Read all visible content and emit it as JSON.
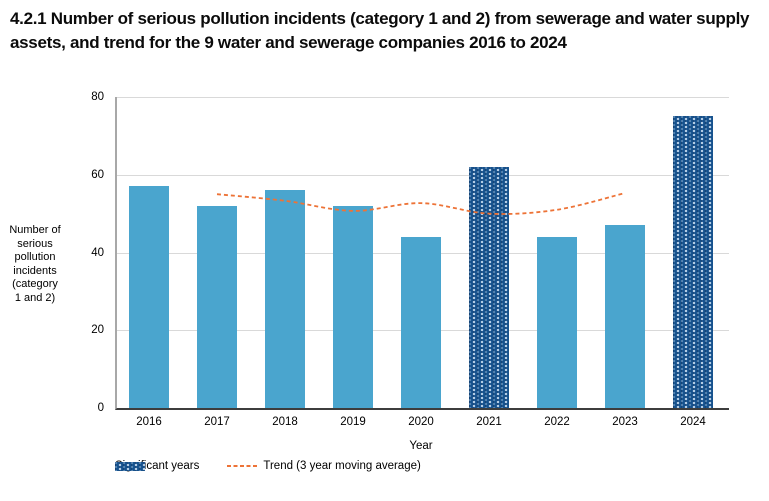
{
  "chart_data": {
    "type": "bar",
    "title": "4.2.1 Number of serious pollution incidents (category 1 and 2) from sewerage and water supply assets, and trend for the 9 water and sewerage companies 2016 to 2024",
    "categories": [
      "2016",
      "2017",
      "2018",
      "2019",
      "2020",
      "2021",
      "2022",
      "2023",
      "2024"
    ],
    "series": [
      {
        "name": "Number of serious pollution incidents (category 1 and 2)",
        "type": "bar",
        "values": [
          57,
          52,
          56,
          52,
          44,
          62,
          44,
          47,
          75
        ]
      },
      {
        "name": "Trend (3 year moving average)",
        "type": "line",
        "x": [
          "2017",
          "2018",
          "2019",
          "2020",
          "2021",
          "2022",
          "2023"
        ],
        "values": [
          55,
          53.3,
          50.7,
          52.7,
          50,
          51,
          55.3
        ]
      }
    ],
    "significant_years": [
      "2021",
      "2024"
    ],
    "xlabel": "Year",
    "ylabel": "Number of serious pollution incidents (category 1 and 2)",
    "ylim": [
      0,
      80
    ],
    "yticks": [
      0,
      20,
      40,
      60,
      80
    ],
    "grid": true,
    "legend_position": "bottom",
    "legend": [
      {
        "label": "Significant years",
        "swatch": "patterned-dark-blue-bar"
      },
      {
        "label": "Trend (3 year moving average)",
        "swatch": "dashed-orange-line"
      }
    ],
    "colors": {
      "bar": "#4AA5CE",
      "significant_bar": "#14508C",
      "trend": "#ED7337",
      "gridline": "#D9D9D9",
      "x_axis": "#3D3D3D",
      "y_axis": "#A8A8A8"
    }
  }
}
